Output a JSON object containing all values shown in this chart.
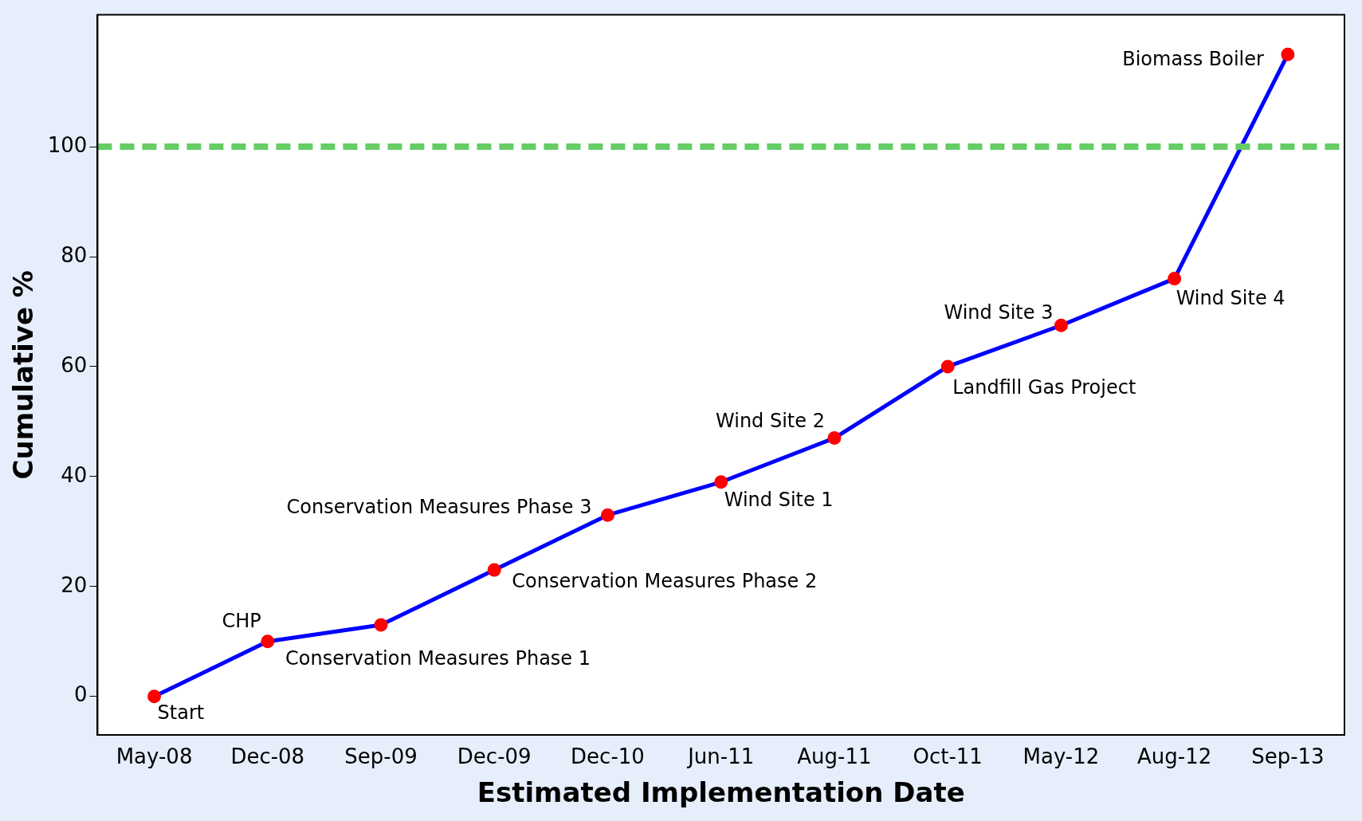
{
  "chart_data": {
    "type": "line",
    "xlabel": "Estimated Implementation Date",
    "ylabel": "Cumulative %",
    "categories": [
      "May-08",
      "Dec-08",
      "Sep-09",
      "Dec-09",
      "Dec-10",
      "Jun-11",
      "Aug-11",
      "Oct-11",
      "May-12",
      "Aug-12",
      "Sep-13"
    ],
    "series": [
      {
        "color": "#0000ff",
        "values": [
          0,
          10,
          13,
          23,
          33,
          39,
          47,
          60,
          67.5,
          76,
          116.8
        ]
      }
    ],
    "ylim": [
      -7,
      124
    ],
    "yticks": [
      0,
      20,
      40,
      60,
      80,
      100
    ],
    "grid": false,
    "legend": false,
    "marker": "circle",
    "line_style": "solid",
    "ref_lines": [
      {
        "axis": "y",
        "value": 100,
        "color": "#66cc66",
        "line_style": "dashed"
      }
    ],
    "annotations": [
      {
        "text": "Start",
        "x": "May-08",
        "y": 0
      },
      {
        "text": "CHP",
        "x": "Dec-08",
        "y": 10
      },
      {
        "text": "Conservation Measures Phase 1",
        "x": "Sep-09",
        "y": 13
      },
      {
        "text": "Conservation Measures Phase 2",
        "x": "Dec-09",
        "y": 23
      },
      {
        "text": "Conservation Measures Phase 3",
        "x": "Dec-10",
        "y": 33
      },
      {
        "text": "Wind Site 1",
        "x": "Jun-11",
        "y": 39
      },
      {
        "text": "Wind Site 2",
        "x": "Aug-11",
        "y": 47
      },
      {
        "text": "Landfill Gas Project",
        "x": "Oct-11",
        "y": 60
      },
      {
        "text": "Wind Site 3",
        "x": "May-12",
        "y": 67.5
      },
      {
        "text": "Wind Site 4",
        "x": "Aug-12",
        "y": 76
      },
      {
        "text": "Biomass Boiler",
        "x": "Sep-13",
        "y": 116.8
      }
    ]
  }
}
